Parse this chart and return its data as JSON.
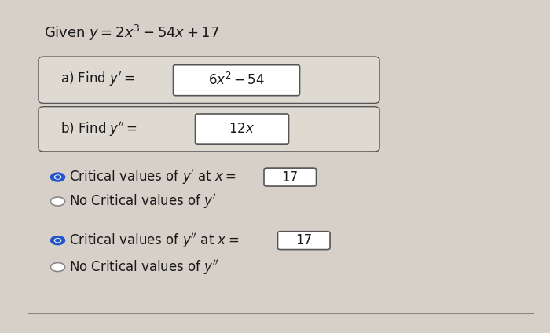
{
  "background_color": "#d6d0c8",
  "title_text": "Given $y = 2x^3 - 54x + 17$",
  "part_a_label": "a) Find $y^\\prime=$",
  "part_a_box": "$6x^2 - 54$",
  "part_b_label": "b) Find $y^{\\prime\\prime}=$",
  "part_b_box": "$12x$",
  "radio1_filled": true,
  "radio1_text": "Critical values of $y^\\prime$ at $x =$ ",
  "radio1_box": "17",
  "radio2_text": "No Critical values of $y^\\prime$",
  "radio3_filled": true,
  "radio3_text": "Critical values of $y^{\\prime\\prime}$ at $x =$ ",
  "radio3_box": "17",
  "radio4_text": "No Critical values of $y^{\\prime\\prime}$",
  "box_color": "#e8e4dc",
  "box_edge_color": "#555555",
  "text_color": "#1a1a1a",
  "radio_filled_color": "#2255cc",
  "radio_empty_color": "#ffffff",
  "large_box_color": "#dedad2"
}
